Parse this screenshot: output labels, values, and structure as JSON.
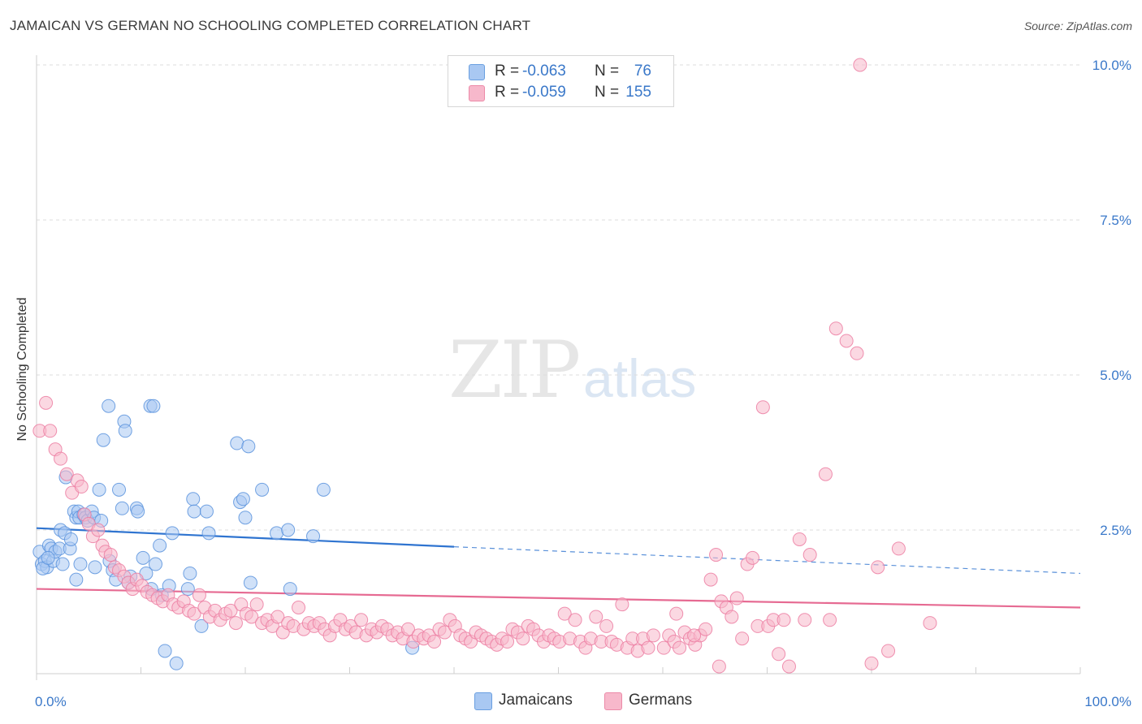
{
  "title": "JAMAICAN VS GERMAN NO SCHOOLING COMPLETED CORRELATION CHART",
  "source": "Source: ZipAtlas.com",
  "watermark": {
    "zip": "ZIP",
    "atlas": "atlas"
  },
  "legend": {
    "r_label": "R =",
    "n_label": "N =",
    "rows": [
      {
        "r": "-0.063",
        "n": "76",
        "fill": "#a9c8f2",
        "stroke": "#6a9fe0"
      },
      {
        "r": "-0.059",
        "n": "155",
        "fill": "#f7b8cb",
        "stroke": "#ec8aa8"
      }
    ]
  },
  "chart_data": {
    "type": "scatter",
    "ylabel": "No Schooling Completed",
    "xlim": [
      0,
      100
    ],
    "ylim": [
      0,
      10.5
    ],
    "x_tick_labels": [
      "0.0%",
      "100.0%"
    ],
    "y_ticks": [
      2.5,
      5.0,
      7.5,
      10.0
    ],
    "y_tick_labels": [
      "2.5%",
      "5.0%",
      "7.5%",
      "10.0%"
    ],
    "grid": true,
    "legend_position": "top-center",
    "series": [
      {
        "name": "Jamaicans",
        "color": "#5b93dd",
        "fill": "#a9c8f2",
        "trend": {
          "x0": 0,
          "y0": 2.53,
          "x1": 40,
          "y1": 2.23,
          "dash_to_x": 100,
          "dash_to_y": 1.8,
          "line_color": "#2f74d0"
        },
        "points": [
          [
            0.3,
            2.15
          ],
          [
            0.5,
            1.95
          ],
          [
            0.8,
            2.0
          ],
          [
            1.0,
            1.9
          ],
          [
            1.2,
            2.25
          ],
          [
            1.4,
            2.2
          ],
          [
            1.6,
            2.0
          ],
          [
            1.8,
            2.15
          ],
          [
            2.2,
            2.2
          ],
          [
            2.3,
            2.5
          ],
          [
            2.5,
            1.95
          ],
          [
            2.7,
            2.45
          ],
          [
            3.2,
            2.2
          ],
          [
            3.6,
            2.8
          ],
          [
            3.8,
            2.7
          ],
          [
            4.0,
            2.8
          ],
          [
            4.1,
            2.7
          ],
          [
            4.5,
            2.75
          ],
          [
            4.7,
            2.7
          ],
          [
            4.9,
            2.65
          ],
          [
            5.3,
            2.8
          ],
          [
            5.5,
            2.7
          ],
          [
            6.2,
            2.65
          ],
          [
            6.0,
            3.15
          ],
          [
            6.4,
            3.95
          ],
          [
            6.9,
            4.5
          ],
          [
            7.0,
            2.0
          ],
          [
            7.3,
            1.85
          ],
          [
            7.6,
            1.7
          ],
          [
            7.9,
            3.15
          ],
          [
            8.2,
            2.85
          ],
          [
            8.4,
            4.25
          ],
          [
            8.5,
            4.1
          ],
          [
            9.6,
            2.85
          ],
          [
            9.7,
            2.8
          ],
          [
            10.2,
            2.05
          ],
          [
            10.5,
            1.8
          ],
          [
            10.9,
            4.5
          ],
          [
            11.2,
            4.5
          ],
          [
            11.4,
            1.95
          ],
          [
            11.8,
            2.25
          ],
          [
            12.0,
            1.45
          ],
          [
            12.3,
            0.55
          ],
          [
            12.7,
            1.6
          ],
          [
            13.0,
            2.45
          ],
          [
            13.4,
            0.35
          ],
          [
            14.5,
            1.55
          ],
          [
            14.7,
            1.8
          ],
          [
            15.0,
            3.0
          ],
          [
            15.1,
            2.8
          ],
          [
            15.8,
            0.95
          ],
          [
            16.3,
            2.8
          ],
          [
            16.5,
            2.45
          ],
          [
            19.2,
            3.9
          ],
          [
            19.5,
            2.95
          ],
          [
            19.8,
            3.0
          ],
          [
            20.0,
            2.7
          ],
          [
            20.3,
            3.85
          ],
          [
            20.5,
            1.65
          ],
          [
            21.6,
            3.15
          ],
          [
            23.0,
            2.45
          ],
          [
            24.1,
            2.5
          ],
          [
            24.3,
            1.55
          ],
          [
            26.5,
            2.4
          ],
          [
            27.5,
            3.15
          ],
          [
            3.8,
            1.7
          ],
          [
            4.2,
            1.95
          ],
          [
            5.6,
            1.9
          ],
          [
            9.0,
            1.75
          ],
          [
            11.0,
            1.55
          ],
          [
            36.0,
            0.6
          ],
          [
            0.6,
            1.88
          ],
          [
            1.1,
            2.05
          ],
          [
            2.8,
            3.35
          ],
          [
            3.3,
            2.35
          ],
          [
            8.8,
            1.65
          ]
        ]
      },
      {
        "name": "Germans",
        "color": "#ec7ea2",
        "fill": "#f7b8cb",
        "trend": {
          "x0": 0,
          "y0": 1.55,
          "x1": 100,
          "y1": 1.25,
          "line_color": "#e66a92"
        },
        "points": [
          [
            0.3,
            4.1
          ],
          [
            0.9,
            4.55
          ],
          [
            1.3,
            4.1
          ],
          [
            1.8,
            3.8
          ],
          [
            2.3,
            3.65
          ],
          [
            2.9,
            3.4
          ],
          [
            3.4,
            3.1
          ],
          [
            3.9,
            3.3
          ],
          [
            4.3,
            3.2
          ],
          [
            4.6,
            2.75
          ],
          [
            5.0,
            2.6
          ],
          [
            5.4,
            2.4
          ],
          [
            5.9,
            2.5
          ],
          [
            6.3,
            2.25
          ],
          [
            6.6,
            2.15
          ],
          [
            7.1,
            2.1
          ],
          [
            7.5,
            1.9
          ],
          [
            7.9,
            1.85
          ],
          [
            8.4,
            1.75
          ],
          [
            8.8,
            1.65
          ],
          [
            9.2,
            1.55
          ],
          [
            9.6,
            1.7
          ],
          [
            10.1,
            1.6
          ],
          [
            10.6,
            1.5
          ],
          [
            11.1,
            1.45
          ],
          [
            11.6,
            1.4
          ],
          [
            12.1,
            1.35
          ],
          [
            12.6,
            1.45
          ],
          [
            13.1,
            1.3
          ],
          [
            13.6,
            1.25
          ],
          [
            14.1,
            1.35
          ],
          [
            14.6,
            1.2
          ],
          [
            15.1,
            1.15
          ],
          [
            15.6,
            1.45
          ],
          [
            16.1,
            1.25
          ],
          [
            16.6,
            1.1
          ],
          [
            17.1,
            1.2
          ],
          [
            17.6,
            1.05
          ],
          [
            18.1,
            1.15
          ],
          [
            18.6,
            1.2
          ],
          [
            19.1,
            1.0
          ],
          [
            19.6,
            1.3
          ],
          [
            20.1,
            1.15
          ],
          [
            20.6,
            1.1
          ],
          [
            21.1,
            1.3
          ],
          [
            21.6,
            1.0
          ],
          [
            22.1,
            1.05
          ],
          [
            22.6,
            0.95
          ],
          [
            23.1,
            1.1
          ],
          [
            23.6,
            0.85
          ],
          [
            24.1,
            1.0
          ],
          [
            24.6,
            0.95
          ],
          [
            25.1,
            1.25
          ],
          [
            25.6,
            0.9
          ],
          [
            26.1,
            1.0
          ],
          [
            26.6,
            0.95
          ],
          [
            27.1,
            1.0
          ],
          [
            27.6,
            0.9
          ],
          [
            28.1,
            0.8
          ],
          [
            28.6,
            0.95
          ],
          [
            29.1,
            1.05
          ],
          [
            29.6,
            0.9
          ],
          [
            30.1,
            0.95
          ],
          [
            30.6,
            0.85
          ],
          [
            31.1,
            1.05
          ],
          [
            31.6,
            0.8
          ],
          [
            32.1,
            0.9
          ],
          [
            32.6,
            0.85
          ],
          [
            33.1,
            0.95
          ],
          [
            33.6,
            0.9
          ],
          [
            34.1,
            0.8
          ],
          [
            34.6,
            0.85
          ],
          [
            35.1,
            0.75
          ],
          [
            35.6,
            0.9
          ],
          [
            36.1,
            0.7
          ],
          [
            36.6,
            0.8
          ],
          [
            37.1,
            0.75
          ],
          [
            37.6,
            0.8
          ],
          [
            38.1,
            0.7
          ],
          [
            38.6,
            0.9
          ],
          [
            39.1,
            0.85
          ],
          [
            39.6,
            1.05
          ],
          [
            40.1,
            0.95
          ],
          [
            40.6,
            0.8
          ],
          [
            41.1,
            0.75
          ],
          [
            41.6,
            0.7
          ],
          [
            42.1,
            0.85
          ],
          [
            42.6,
            0.8
          ],
          [
            43.1,
            0.75
          ],
          [
            43.6,
            0.7
          ],
          [
            44.1,
            0.65
          ],
          [
            44.6,
            0.75
          ],
          [
            45.1,
            0.7
          ],
          [
            45.6,
            0.9
          ],
          [
            46.1,
            0.85
          ],
          [
            46.6,
            0.75
          ],
          [
            47.1,
            0.95
          ],
          [
            47.6,
            0.9
          ],
          [
            48.1,
            0.8
          ],
          [
            48.6,
            0.7
          ],
          [
            49.1,
            0.8
          ],
          [
            49.6,
            0.75
          ],
          [
            50.1,
            0.7
          ],
          [
            50.6,
            1.15
          ],
          [
            51.1,
            0.75
          ],
          [
            51.6,
            1.05
          ],
          [
            52.1,
            0.7
          ],
          [
            52.6,
            0.6
          ],
          [
            53.1,
            0.75
          ],
          [
            53.6,
            1.1
          ],
          [
            54.1,
            0.7
          ],
          [
            54.6,
            0.95
          ],
          [
            55.1,
            0.7
          ],
          [
            55.6,
            0.65
          ],
          [
            56.1,
            1.3
          ],
          [
            56.6,
            0.6
          ],
          [
            57.1,
            0.75
          ],
          [
            57.6,
            0.55
          ],
          [
            58.1,
            0.75
          ],
          [
            58.6,
            0.6
          ],
          [
            59.1,
            0.8
          ],
          [
            60.1,
            0.6
          ],
          [
            60.6,
            0.8
          ],
          [
            61.1,
            0.7
          ],
          [
            61.6,
            0.6
          ],
          [
            62.1,
            0.85
          ],
          [
            62.6,
            0.75
          ],
          [
            63.1,
            0.65
          ],
          [
            63.6,
            0.8
          ],
          [
            64.1,
            0.9
          ],
          [
            64.6,
            1.7
          ],
          [
            65.1,
            2.1
          ],
          [
            65.6,
            1.35
          ],
          [
            66.1,
            1.25
          ],
          [
            66.6,
            1.1
          ],
          [
            67.1,
            1.4
          ],
          [
            67.6,
            0.75
          ],
          [
            68.1,
            1.95
          ],
          [
            68.6,
            2.05
          ],
          [
            69.1,
            0.95
          ],
          [
            69.6,
            4.48
          ],
          [
            70.1,
            0.95
          ],
          [
            70.6,
            1.05
          ],
          [
            71.1,
            0.5
          ],
          [
            71.6,
            1.05
          ],
          [
            72.1,
            0.3
          ],
          [
            73.1,
            2.35
          ],
          [
            73.6,
            1.05
          ],
          [
            74.1,
            2.1
          ],
          [
            75.6,
            3.4
          ],
          [
            76.6,
            5.75
          ],
          [
            77.6,
            5.55
          ],
          [
            78.6,
            5.35
          ],
          [
            80.0,
            0.35
          ],
          [
            80.6,
            1.9
          ],
          [
            81.6,
            0.55
          ],
          [
            82.6,
            2.2
          ],
          [
            85.6,
            1.0
          ],
          [
            78.9,
            10.0
          ],
          [
            76.0,
            1.05
          ],
          [
            65.4,
            0.3
          ],
          [
            63.0,
            0.8
          ],
          [
            61.3,
            1.15
          ]
        ]
      }
    ]
  }
}
